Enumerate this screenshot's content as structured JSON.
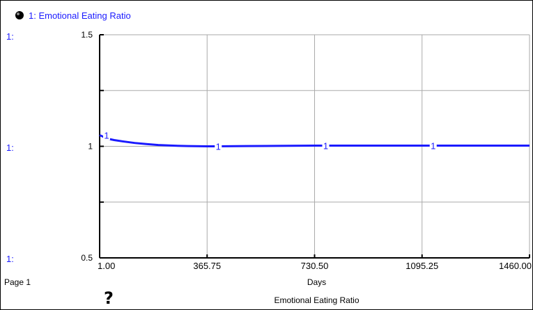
{
  "legend": {
    "series_label": "1: Emotional Eating Ratio",
    "scale_prefix": "1:"
  },
  "page_label": "Page 1",
  "footer_title": "Emotional Eating Ratio",
  "help_glyph": "?",
  "colors": {
    "series": "#1a1aff",
    "grid": "#aaaaaa",
    "axis": "#000000"
  },
  "chart_data": {
    "type": "line",
    "title": "",
    "xlabel": "Days",
    "ylabel": "",
    "xlim": [
      1.0,
      1460.0
    ],
    "ylim": [
      0.5,
      1.5
    ],
    "xticks": [
      "1.00",
      "365.75",
      "730.50",
      "1095.25",
      "1460.00"
    ],
    "yticks": [
      "0.5",
      "1",
      "1.5"
    ],
    "grid": true,
    "series": [
      {
        "name": "1",
        "x": [
          1,
          10,
          25,
          50,
          80,
          120,
          160,
          200,
          250,
          300,
          365.75,
          400,
          500,
          600,
          730.5,
          900,
          1095.25,
          1300,
          1460
        ],
        "y": [
          1.05,
          1.045,
          1.035,
          1.028,
          1.022,
          1.015,
          1.01,
          1.006,
          1.003,
          1.001,
          1.0,
          1.0,
          1.001,
          1.002,
          1.003,
          1.003,
          1.003,
          1.003,
          1.003
        ]
      }
    ],
    "series_markers_x": [
      1,
      365.75,
      730.5,
      1095.25
    ]
  }
}
